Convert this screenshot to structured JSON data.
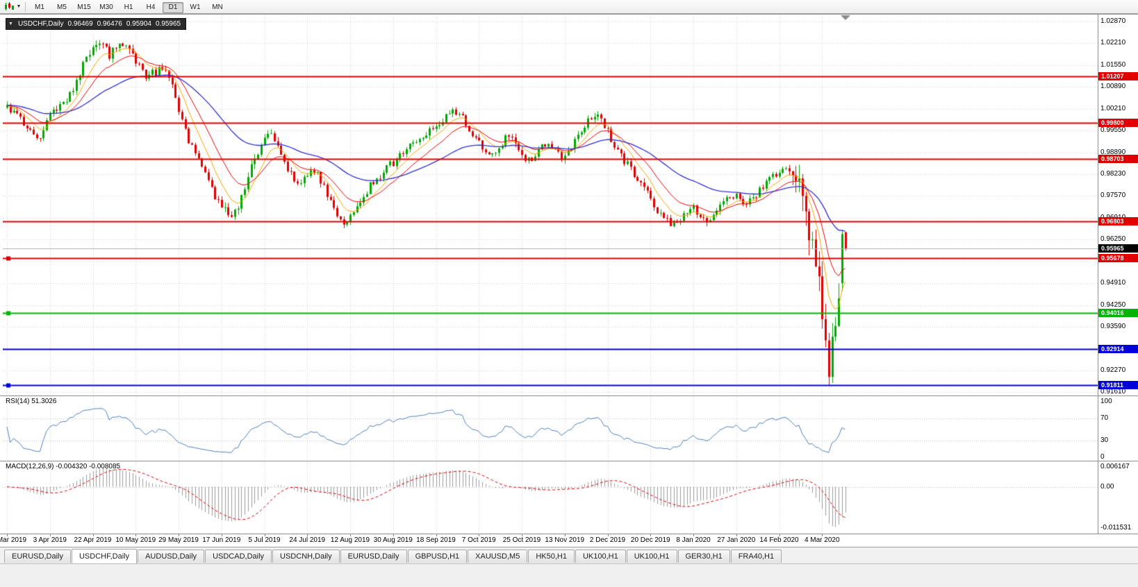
{
  "toolbar": {
    "timeframes": [
      "M1",
      "M5",
      "M15",
      "M30",
      "H1",
      "H4",
      "D1",
      "W1",
      "MN"
    ],
    "active": "D1"
  },
  "chart": {
    "symbol": "USDCHF,Daily",
    "ohlc": {
      "open": "0.96469",
      "high": "0.96476",
      "low": "0.95904",
      "close": "0.95965"
    },
    "current_price": "0.95965",
    "price_ticks": [
      "1.02870",
      "1.02210",
      "1.01550",
      "1.00890",
      "1.00210",
      "0.99550",
      "0.98890",
      "0.98230",
      "0.97570",
      "0.96910",
      "0.96250",
      "0.95590",
      "0.94910",
      "0.94250",
      "0.93590",
      "0.92930",
      "0.92270",
      "0.91610"
    ],
    "hlines": [
      {
        "price": "1.01207",
        "color": "#e00000",
        "selected": false
      },
      {
        "price": "0.99800",
        "color": "#e00000",
        "selected": false
      },
      {
        "price": "0.98703",
        "color": "#e00000",
        "selected": false
      },
      {
        "price": "0.96803",
        "color": "#e00000",
        "selected": false
      },
      {
        "price": "0.95678",
        "color": "#e00000",
        "selected": true
      },
      {
        "price": "0.94016",
        "color": "#00b400",
        "selected": true
      },
      {
        "price": "0.92914",
        "color": "#0000dd",
        "selected": false
      },
      {
        "price": "0.91811",
        "color": "#0000dd",
        "selected": true
      }
    ],
    "dates": [
      "15 Mar 2019",
      "3 Apr 2019",
      "22 Apr 2019",
      "10 May 2019",
      "29 May 2019",
      "17 Jun 2019",
      "5 Jul 2019",
      "24 Jul 2019",
      "12 Aug 2019",
      "30 Aug 2019",
      "18 Sep 2019",
      "7 Oct 2019",
      "25 Oct 2019",
      "13 Nov 2019",
      "2 Dec 2019",
      "20 Dec 2019",
      "8 Jan 2020",
      "27 Jan 2020",
      "14 Feb 2020",
      "4 Mar 2020"
    ]
  },
  "rsi": {
    "label": "RSI(14) 51.3026",
    "ticks": [
      {
        "v": 100,
        "label": "100"
      },
      {
        "v": 70,
        "label": "70"
      },
      {
        "v": 30,
        "label": "30"
      },
      {
        "v": 0,
        "label": "0"
      }
    ],
    "levels": [
      70,
      30
    ]
  },
  "macd": {
    "label": "MACD(12,26,9) -0.004320 -0.008085",
    "tick_top": "0.006167",
    "tick_zero": "0.00",
    "tick_bottom": "-0.011531"
  },
  "tabs": [
    {
      "label": "EURUSD,Daily",
      "active": false
    },
    {
      "label": "USDCHF,Daily",
      "active": true
    },
    {
      "label": "AUDUSD,Daily",
      "active": false
    },
    {
      "label": "USDCAD,Daily",
      "active": false
    },
    {
      "label": "USDCNH,Daily",
      "active": false
    },
    {
      "label": "EURUSD,Daily",
      "active": false
    },
    {
      "label": "GBPUSD,H1",
      "active": false
    },
    {
      "label": "XAUUSD,M5",
      "active": false
    },
    {
      "label": "HK50,H1",
      "active": false
    },
    {
      "label": "UK100,H1",
      "active": false
    },
    {
      "label": "UK100,H1",
      "active": false
    },
    {
      "label": "GER30,H1",
      "active": false
    },
    {
      "label": "FRA40,H1",
      "active": false
    }
  ],
  "chart_data": {
    "type": "candlestick",
    "symbol": "USDCHF",
    "timeframe": "Daily",
    "bars": 255,
    "visible_high": 1.0226,
    "visible_low": 0.9182,
    "up_color": "#00a800",
    "down_color": "#e00000",
    "ma": {
      "fast": {
        "period": 8,
        "color": "#f7a600"
      },
      "mid": {
        "period": 16,
        "color": "#ee0000"
      },
      "slow": {
        "period": 45,
        "color": "#3030cf"
      }
    },
    "spike_low": {
      "index": 249,
      "price": 0.9182
    },
    "last_candle": {
      "open": 0.96469,
      "high": 0.96476,
      "low": 0.95904,
      "close": 0.95965
    },
    "price_path": [
      [
        0,
        1.0025
      ],
      [
        4,
        0.9985
      ],
      [
        8,
        0.9945
      ],
      [
        10,
        0.9932
      ],
      [
        13,
        1.0
      ],
      [
        16,
        1.0025
      ],
      [
        19,
        1.006
      ],
      [
        22,
        1.013
      ],
      [
        25,
        1.02
      ],
      [
        28,
        1.0218
      ],
      [
        31,
        1.019
      ],
      [
        34,
        1.0212
      ],
      [
        37,
        1.019
      ],
      [
        40,
        1.0148
      ],
      [
        43,
        1.0118
      ],
      [
        46,
        1.014
      ],
      [
        48,
        1.015
      ],
      [
        50,
        1.0085
      ],
      [
        52,
        1.0005
      ],
      [
        54,
        0.995
      ],
      [
        56,
        0.9905
      ],
      [
        58,
        0.9868
      ],
      [
        60,
        0.982
      ],
      [
        63,
        0.9762
      ],
      [
        66,
        0.9722
      ],
      [
        68,
        0.97
      ],
      [
        70,
        0.9732
      ],
      [
        72,
        0.9788
      ],
      [
        74,
        0.984
      ],
      [
        76,
        0.9878
      ],
      [
        78,
        0.9928
      ],
      [
        80,
        0.9948
      ],
      [
        82,
        0.9918
      ],
      [
        84,
        0.9868
      ],
      [
        86,
        0.982
      ],
      [
        88,
        0.9792
      ],
      [
        90,
        0.9812
      ],
      [
        92,
        0.984
      ],
      [
        94,
        0.9818
      ],
      [
        96,
        0.978
      ],
      [
        98,
        0.9742
      ],
      [
        100,
        0.9702
      ],
      [
        102,
        0.9678
      ],
      [
        104,
        0.9692
      ],
      [
        106,
        0.9728
      ],
      [
        108,
        0.9758
      ],
      [
        110,
        0.9788
      ],
      [
        113,
        0.982
      ],
      [
        116,
        0.985
      ],
      [
        119,
        0.9878
      ],
      [
        122,
        0.9905
      ],
      [
        125,
        0.993
      ],
      [
        128,
        0.9955
      ],
      [
        131,
        0.9983
      ],
      [
        134,
        1.0005
      ],
      [
        136,
        1.0015
      ],
      [
        138,
        0.9993
      ],
      [
        140,
        0.9958
      ],
      [
        142,
        0.9928
      ],
      [
        144,
        0.9898
      ],
      [
        146,
        0.9872
      ],
      [
        148,
        0.9892
      ],
      [
        150,
        0.992
      ],
      [
        152,
        0.9938
      ],
      [
        154,
        0.9908
      ],
      [
        156,
        0.988
      ],
      [
        158,
        0.9862
      ],
      [
        160,
        0.9882
      ],
      [
        162,
        0.9902
      ],
      [
        164,
        0.992
      ],
      [
        166,
        0.9895
      ],
      [
        168,
        0.9872
      ],
      [
        170,
        0.9892
      ],
      [
        172,
        0.992
      ],
      [
        174,
        0.995
      ],
      [
        176,
        0.9985
      ],
      [
        178,
        1.0008
      ],
      [
        180,
        0.9988
      ],
      [
        182,
        0.995
      ],
      [
        184,
        0.9912
      ],
      [
        186,
        0.988
      ],
      [
        188,
        0.985
      ],
      [
        190,
        0.9822
      ],
      [
        192,
        0.9792
      ],
      [
        194,
        0.9762
      ],
      [
        196,
        0.9732
      ],
      [
        198,
        0.9702
      ],
      [
        200,
        0.9682
      ],
      [
        202,
        0.9665
      ],
      [
        204,
        0.9682
      ],
      [
        206,
        0.9702
      ],
      [
        208,
        0.9722
      ],
      [
        210,
        0.97
      ],
      [
        212,
        0.9682
      ],
      [
        214,
        0.9702
      ],
      [
        216,
        0.9722
      ],
      [
        218,
        0.9742
      ],
      [
        220,
        0.9762
      ],
      [
        222,
        0.975
      ],
      [
        224,
        0.9732
      ],
      [
        226,
        0.9752
      ],
      [
        228,
        0.9772
      ],
      [
        230,
        0.9792
      ],
      [
        232,
        0.9812
      ],
      [
        234,
        0.9832
      ],
      [
        236,
        0.9846
      ],
      [
        238,
        0.9838
      ],
      [
        240,
        0.9798
      ],
      [
        241,
        0.975
      ],
      [
        242,
        0.97
      ],
      [
        243,
        0.9658
      ],
      [
        244,
        0.9618
      ],
      [
        245,
        0.9558
      ],
      [
        246,
        0.9478
      ],
      [
        247,
        0.9378
      ],
      [
        248,
        0.9288
      ],
      [
        249,
        0.9248
      ],
      [
        250,
        0.9305
      ],
      [
        251,
        0.9385
      ],
      [
        252,
        0.9492
      ],
      [
        253,
        0.9638
      ],
      [
        254,
        0.9597
      ]
    ]
  }
}
